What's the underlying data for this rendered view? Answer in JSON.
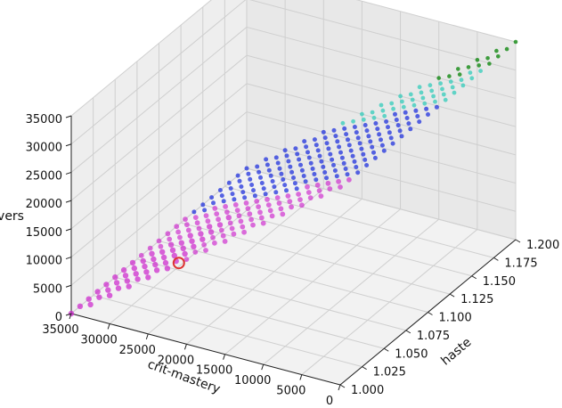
{
  "chart_data": {
    "type": "scatter",
    "subtype": "3d",
    "title": "",
    "xlabel": "haste",
    "ylabel": "crit-mastery",
    "zlabel": "vers",
    "xlim": [
      1.0,
      1.2
    ],
    "ylim": [
      0,
      35000
    ],
    "zlim": [
      0,
      35000
    ],
    "x_ticks": [
      "1.000",
      "1.025",
      "1.050",
      "1.075",
      "1.100",
      "1.125",
      "1.150",
      "1.175",
      "1.200"
    ],
    "y_ticks": [
      "0",
      "5000",
      "10000",
      "15000",
      "20000",
      "25000",
      "30000",
      "35000"
    ],
    "z_ticks": [
      "0",
      "5000",
      "10000",
      "15000",
      "20000",
      "25000",
      "30000",
      "35000"
    ],
    "grid": true,
    "legend": "none",
    "colors": {
      "magenta": "#cc22cc",
      "blue": "#2233dd",
      "cyan": "#33ccbb",
      "green": "#118811",
      "highlight": "#dd3333"
    },
    "grid_points": {
      "haste": [
        1.0,
        1.01,
        1.02,
        1.03,
        1.04,
        1.05,
        1.06,
        1.07,
        1.08,
        1.09,
        1.1,
        1.11,
        1.12,
        1.13,
        1.14,
        1.15,
        1.16,
        1.17,
        1.18,
        1.19,
        1.2
      ],
      "crit_mastery": [
        0,
        2500,
        5000,
        7500,
        10000,
        12500,
        15000,
        17500,
        20000,
        22500,
        25000,
        27500,
        30000,
        32500,
        35000
      ],
      "vers_rule": "vers = 35000 - crit_mastery",
      "color_rule": "color by output rank: magenta lowest, blue middle, cyan higher, green highest"
    },
    "highlight": {
      "haste": 1.0,
      "crit_mastery": 21000,
      "vers": 14000
    }
  }
}
